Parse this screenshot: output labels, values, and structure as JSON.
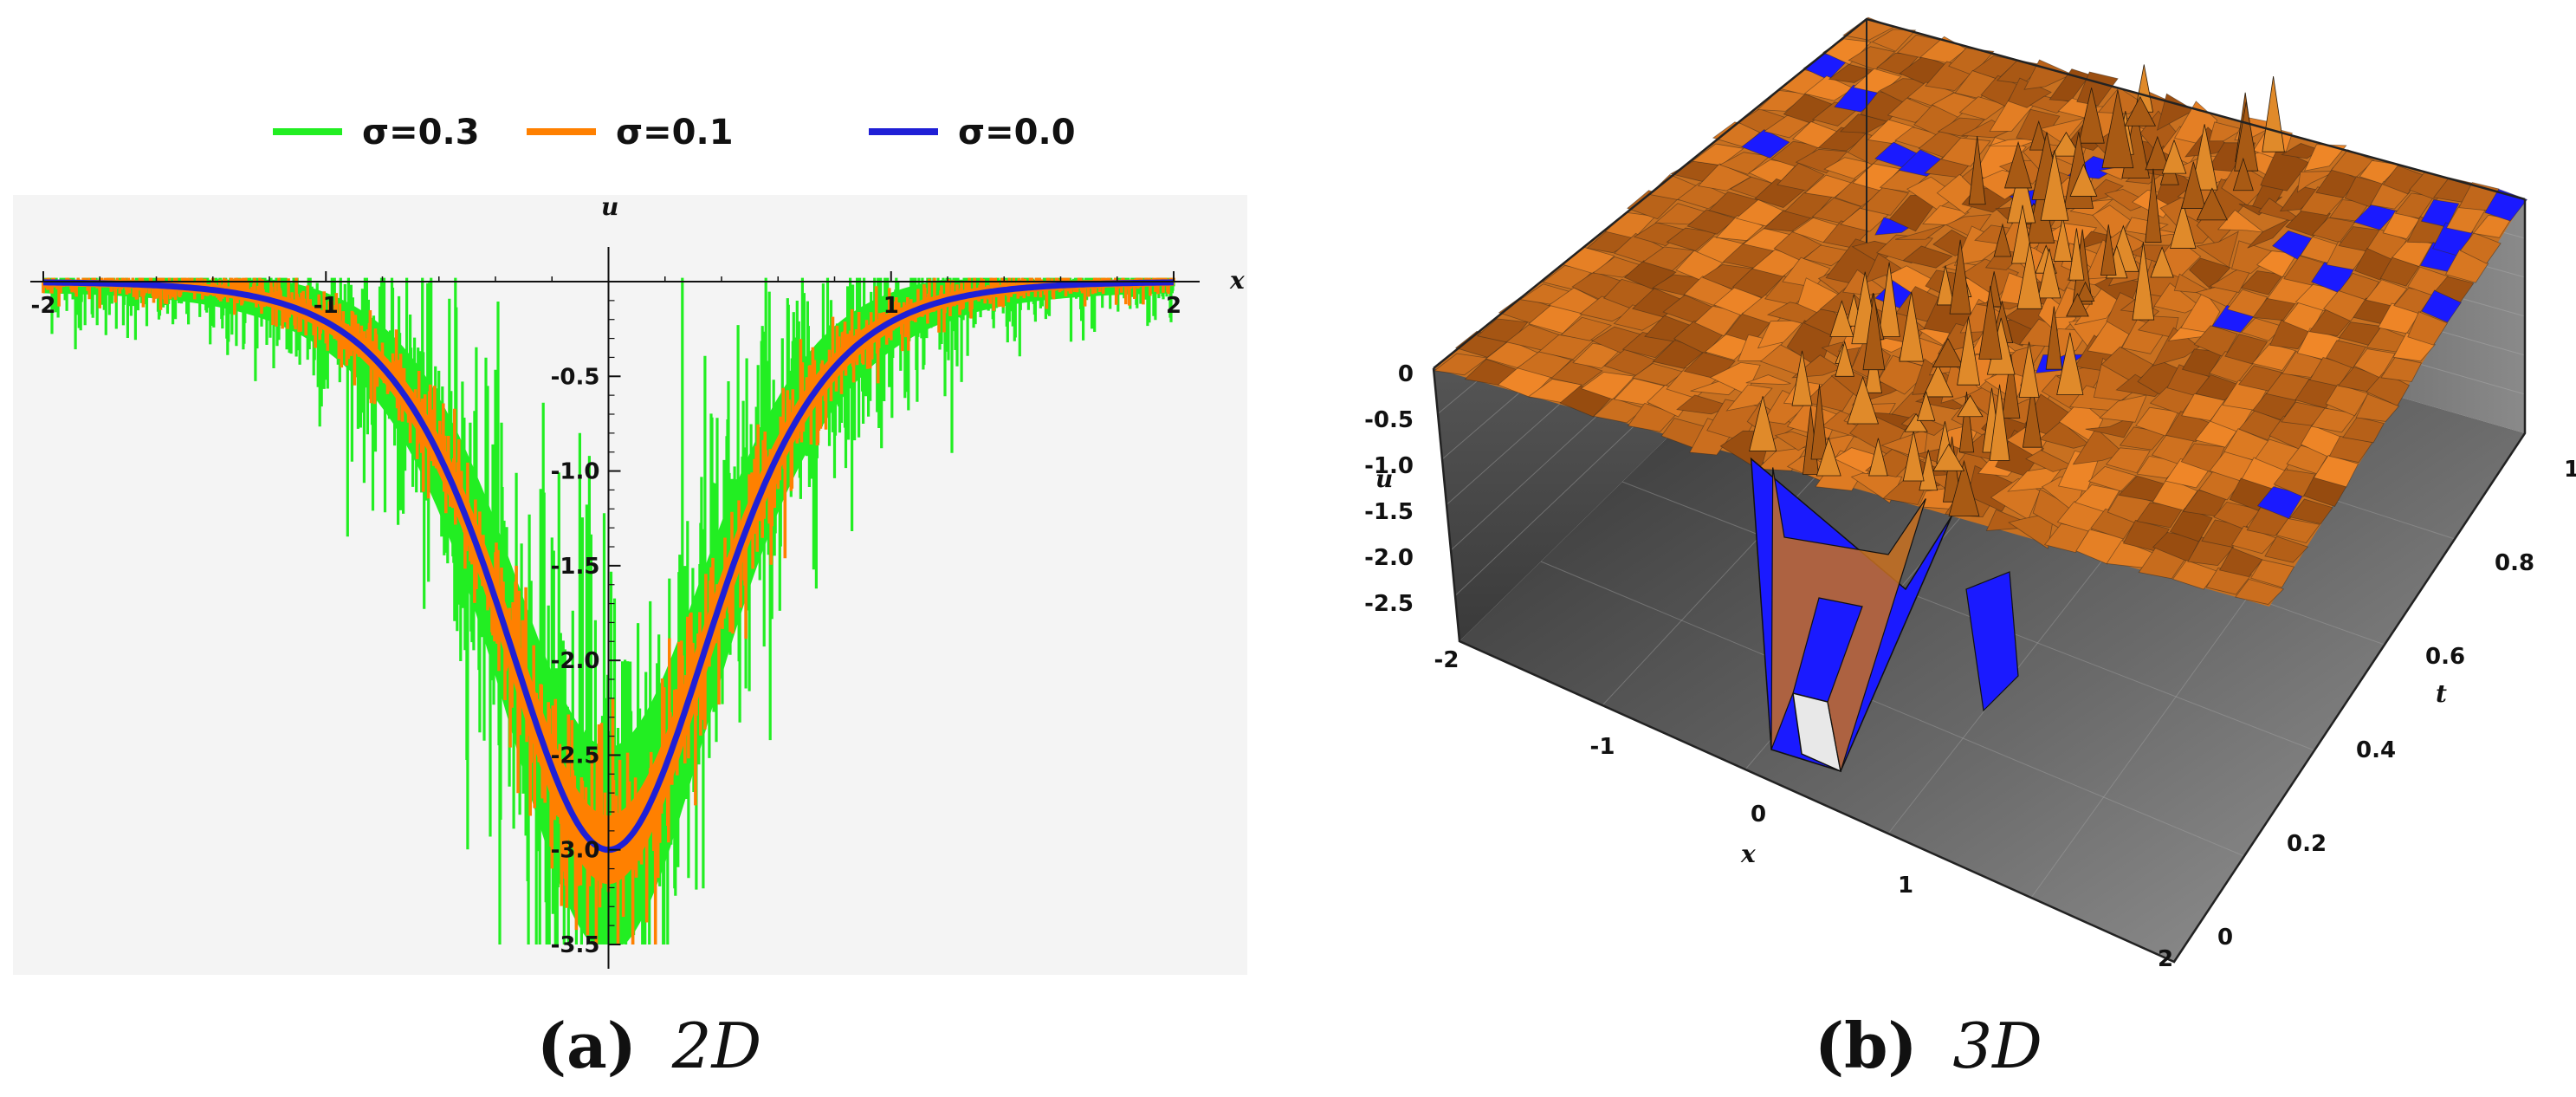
{
  "chart_data": [
    {
      "type": "line",
      "title": "",
      "xlabel": "x",
      "ylabel": "u",
      "xlim": [
        -2,
        2
      ],
      "ylim": [
        -3.5,
        0
      ],
      "x_ticks": [
        "-2",
        "-1",
        "1",
        "2"
      ],
      "y_ticks": [
        "-0.5",
        "-1.0",
        "-1.5",
        "-2.0",
        "-2.5",
        "-3.0",
        "-3.5"
      ],
      "legend_position": "top",
      "series": [
        {
          "name": "σ=0.3",
          "color": "#22ee22",
          "noise": 0.3,
          "amplitude": -3,
          "width": 0.5
        },
        {
          "name": "σ=0.1",
          "color": "#ff8000",
          "noise": 0.1,
          "amplitude": -3,
          "width": 0.5
        },
        {
          "name": "σ=0.0",
          "color": "#1f1fd6",
          "noise": 0.0,
          "amplitude": -3,
          "width": 0.5
        }
      ],
      "caption_label": "(a)",
      "caption_text": "2D"
    },
    {
      "type": "surface",
      "xlabel": "x",
      "ylabel": "t",
      "zlabel": "u",
      "xlim": [
        -2,
        2
      ],
      "ylim": [
        0,
        1
      ],
      "zlim": [
        -2.75,
        0
      ],
      "x_ticks": [
        "-2",
        "-1",
        "0",
        "1",
        "2"
      ],
      "t_ticks": [
        "0",
        "0.2",
        "0.4",
        "0.6",
        "0.8",
        "1.0"
      ],
      "z_ticks": [
        "0",
        "-0.5",
        "-1.0",
        "-1.5",
        "-2.0",
        "-2.5"
      ],
      "surface_color": "#d47a22",
      "underside_color": "#1a1aff",
      "caption_label": "(b)",
      "caption_text": "3D"
    }
  ]
}
